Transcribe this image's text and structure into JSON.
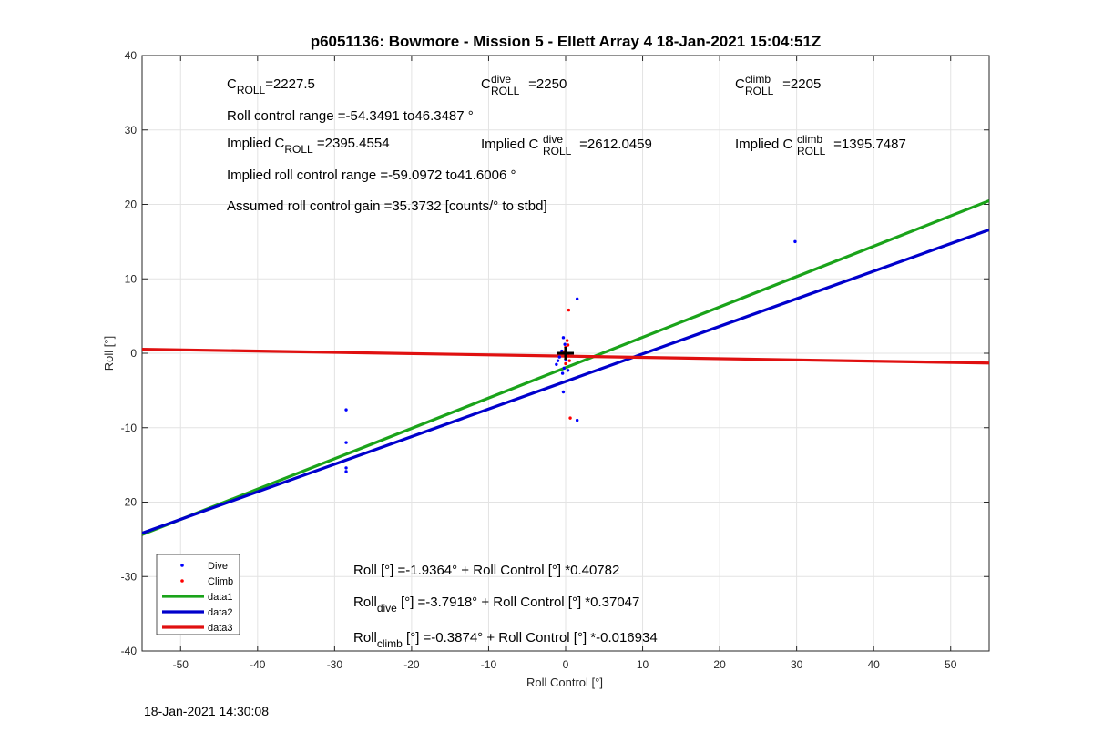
{
  "chart_data": {
    "type": "scatter",
    "title": "p6051136: Bowmore - Mission 5 - Ellett Array 4 18-Jan-2021 15:04:51Z",
    "xlabel": "Roll Control [°]",
    "ylabel": "Roll [°]",
    "xlim": [
      -55,
      55
    ],
    "ylim": [
      -40,
      40
    ],
    "x_ticks": [
      -50,
      -40,
      -30,
      -20,
      -10,
      0,
      10,
      20,
      30,
      40,
      50
    ],
    "y_ticks": [
      -40,
      -30,
      -20,
      -10,
      0,
      10,
      20,
      30,
      40
    ],
    "grid": true,
    "legend_position": "bottom-left",
    "series": [
      {
        "name": "Dive",
        "kind": "points",
        "color": "#0000ff",
        "points": [
          [
            -28.5,
            -7.6
          ],
          [
            -28.5,
            -12.0
          ],
          [
            -28.5,
            -15.4
          ],
          [
            -28.5,
            -15.9
          ],
          [
            29.8,
            15.0
          ],
          [
            1.5,
            7.3
          ],
          [
            1.5,
            -9.0
          ],
          [
            -0.3,
            -5.2
          ],
          [
            -0.3,
            2.1
          ],
          [
            -0.5,
            0.3
          ],
          [
            -0.8,
            -0.5
          ],
          [
            -1.0,
            -1.0
          ],
          [
            -1.2,
            -1.5
          ],
          [
            -0.2,
            -2.0
          ],
          [
            -0.4,
            -2.7
          ],
          [
            0.3,
            -2.3
          ],
          [
            0.0,
            -0.8
          ],
          [
            -0.1,
            1.2
          ]
        ]
      },
      {
        "name": "Climb",
        "kind": "points",
        "color": "#ff0000",
        "points": [
          [
            0.4,
            5.8
          ],
          [
            0.6,
            -8.7
          ],
          [
            0.2,
            1.7
          ],
          [
            0.0,
            0.8
          ],
          [
            0.3,
            -0.3
          ],
          [
            0.5,
            -1.0
          ],
          [
            0.0,
            -1.4
          ],
          [
            0.3,
            1.1
          ],
          [
            -0.2,
            0.2
          ]
        ]
      },
      {
        "name": "data1",
        "kind": "line",
        "color": "#1aa31a",
        "intercept": -1.9364,
        "slope": 0.40782
      },
      {
        "name": "data2",
        "kind": "line",
        "color": "#0000cc",
        "intercept": -3.7918,
        "slope": 0.37047
      },
      {
        "name": "data3",
        "kind": "line",
        "color": "#e01010",
        "intercept": -0.3874,
        "slope": -0.016934
      },
      {
        "name": "",
        "kind": "marker",
        "color": "#000000",
        "points": [
          [
            0,
            0
          ]
        ]
      }
    ],
    "annotations": {
      "c_roll": {
        "main": "C",
        "sub": "ROLL",
        "text": "=2227.5"
      },
      "c_roll_dive": {
        "main": "C",
        "sup": "dive",
        "sub": "ROLL",
        "text": " =2250"
      },
      "c_roll_climb": {
        "main": "C",
        "sup": "climb",
        "sub": "ROLL",
        "text": " =2205"
      },
      "range": "Roll control range =-54.3491 to46.3487 °",
      "implied_c_roll": {
        "pre": "Implied C",
        "sub": "ROLL",
        "text": " =2395.4554"
      },
      "implied_c_roll_dive": {
        "pre": "Implied C",
        "sup": "dive",
        "sub": "ROLL",
        "text": " =2612.0459"
      },
      "implied_c_roll_climb": {
        "pre": "Implied C",
        "sup": "climb",
        "sub": "ROLL",
        "text": " =1395.7487"
      },
      "implied_range": "Implied roll control range =-59.0972 to41.6006 °",
      "gain": "Assumed roll control gain =35.3732 [counts/° to stbd]",
      "fit_all": "Roll [°] =-1.9364° + Roll Control [°] *0.40782",
      "fit_dive": {
        "pre": "Roll",
        "sub": "dive",
        "text": " [°] =-3.7918° + Roll Control [°] *0.37047"
      },
      "fit_climb": {
        "pre": "Roll",
        "sub": "climb",
        "text": " [°] =-0.3874° + Roll Control [°] *-0.016934"
      }
    }
  },
  "footer": {
    "timestamp": "18-Jan-2021 14:30:08"
  }
}
